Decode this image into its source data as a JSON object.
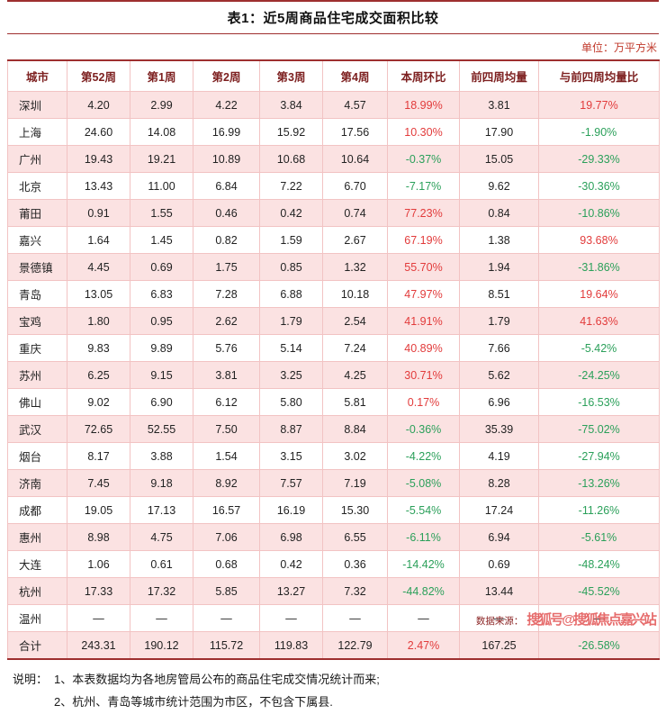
{
  "title": "表1：近5周商品住宅成交面积比较",
  "unit_label": "单位：万平方米",
  "table": {
    "headers": [
      "城市",
      "第52周",
      "第1周",
      "第2周",
      "第3周",
      "第4周",
      "本周环比",
      "前四周均量",
      "与前四周均量比"
    ],
    "rows": [
      [
        "深圳",
        "4.20",
        "2.99",
        "4.22",
        "3.84",
        "4.57",
        "18.99%",
        "3.81",
        "19.77%"
      ],
      [
        "上海",
        "24.60",
        "14.08",
        "16.99",
        "15.92",
        "17.56",
        "10.30%",
        "17.90",
        "-1.90%"
      ],
      [
        "广州",
        "19.43",
        "19.21",
        "10.89",
        "10.68",
        "10.64",
        "-0.37%",
        "15.05",
        "-29.33%"
      ],
      [
        "北京",
        "13.43",
        "11.00",
        "6.84",
        "7.22",
        "6.70",
        "-7.17%",
        "9.62",
        "-30.36%"
      ],
      [
        "莆田",
        "0.91",
        "1.55",
        "0.46",
        "0.42",
        "0.74",
        "77.23%",
        "0.84",
        "-10.86%"
      ],
      [
        "嘉兴",
        "1.64",
        "1.45",
        "0.82",
        "1.59",
        "2.67",
        "67.19%",
        "1.38",
        "93.68%"
      ],
      [
        "景德镇",
        "4.45",
        "0.69",
        "1.75",
        "0.85",
        "1.32",
        "55.70%",
        "1.94",
        "-31.86%"
      ],
      [
        "青岛",
        "13.05",
        "6.83",
        "7.28",
        "6.88",
        "10.18",
        "47.97%",
        "8.51",
        "19.64%"
      ],
      [
        "宝鸡",
        "1.80",
        "0.95",
        "2.62",
        "1.79",
        "2.54",
        "41.91%",
        "1.79",
        "41.63%"
      ],
      [
        "重庆",
        "9.83",
        "9.89",
        "5.76",
        "5.14",
        "7.24",
        "40.89%",
        "7.66",
        "-5.42%"
      ],
      [
        "苏州",
        "6.25",
        "9.15",
        "3.81",
        "3.25",
        "4.25",
        "30.71%",
        "5.62",
        "-24.25%"
      ],
      [
        "佛山",
        "9.02",
        "6.90",
        "6.12",
        "5.80",
        "5.81",
        "0.17%",
        "6.96",
        "-16.53%"
      ],
      [
        "武汉",
        "72.65",
        "52.55",
        "7.50",
        "8.87",
        "8.84",
        "-0.36%",
        "35.39",
        "-75.02%"
      ],
      [
        "烟台",
        "8.17",
        "3.88",
        "1.54",
        "3.15",
        "3.02",
        "-4.22%",
        "4.19",
        "-27.94%"
      ],
      [
        "济南",
        "7.45",
        "9.18",
        "8.92",
        "7.57",
        "7.19",
        "-5.08%",
        "8.28",
        "-13.26%"
      ],
      [
        "成都",
        "19.05",
        "17.13",
        "16.57",
        "16.19",
        "15.30",
        "-5.54%",
        "17.24",
        "-11.26%"
      ],
      [
        "惠州",
        "8.98",
        "4.75",
        "7.06",
        "6.98",
        "6.55",
        "-6.11%",
        "6.94",
        "-5.61%"
      ],
      [
        "大连",
        "1.06",
        "0.61",
        "0.68",
        "0.42",
        "0.36",
        "-14.42%",
        "0.69",
        "-48.24%"
      ],
      [
        "杭州",
        "17.33",
        "17.32",
        "5.85",
        "13.27",
        "7.32",
        "-44.82%",
        "13.44",
        "-45.52%"
      ],
      [
        "温州",
        "—",
        "—",
        "—",
        "—",
        "—",
        "—",
        "—",
        "—"
      ],
      [
        "合计",
        "243.31",
        "190.12",
        "115.72",
        "119.83",
        "122.79",
        "2.47%",
        "167.25",
        "-26.58%"
      ]
    ]
  },
  "notes": {
    "label": "说明：",
    "line1": "1、本表数据均为各地房管局公布的商品住宅成交情况统计而来;",
    "line2": "2、杭州、青岛等城市统计范围为市区，不包含下属县."
  },
  "source": {
    "label": "数据来源：",
    "watermark": "搜狐号@搜狐焦点嘉兴站"
  },
  "colors": {
    "accent_red": "#9e2f2f",
    "row_pink": "#fbe2e2",
    "positive_red": "#e23b3b",
    "negative_green": "#2ba05a",
    "header_text": "#7d2020"
  }
}
